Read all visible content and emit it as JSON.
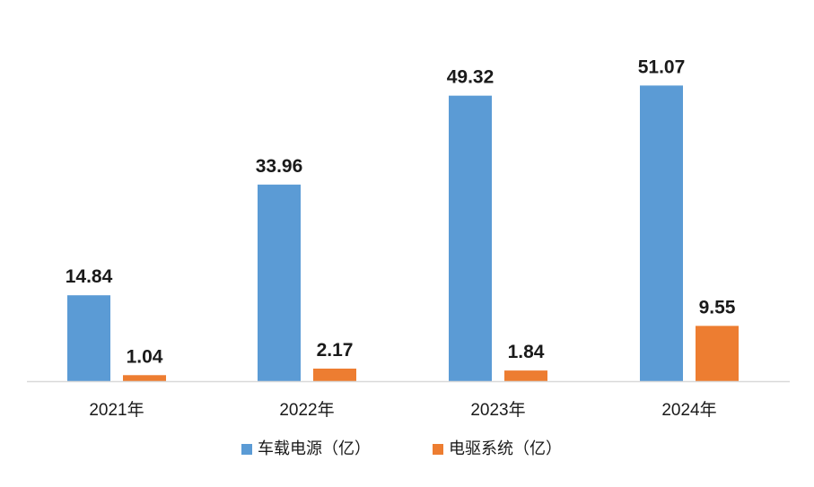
{
  "chart_data": {
    "type": "bar",
    "categories": [
      "2021年",
      "2022年",
      "2023年",
      "2024年"
    ],
    "series": [
      {
        "name": "车载电源（亿）",
        "values": [
          14.84,
          33.96,
          49.32,
          51.07
        ],
        "color": "#5B9BD5"
      },
      {
        "name": "电驱系统（亿）",
        "values": [
          1.04,
          2.17,
          1.84,
          9.55
        ],
        "color": "#ED7D31"
      }
    ],
    "value_labels": [
      [
        "14.84",
        "33.96",
        "49.32",
        "51.07"
      ],
      [
        "1.04",
        "2.17",
        "1.84",
        "9.55"
      ]
    ],
    "title": "",
    "xlabel": "",
    "ylabel": "",
    "ylim": [
      0,
      55
    ],
    "grid": false,
    "legend": "bottom",
    "axis_color": "#d9d9d9"
  }
}
